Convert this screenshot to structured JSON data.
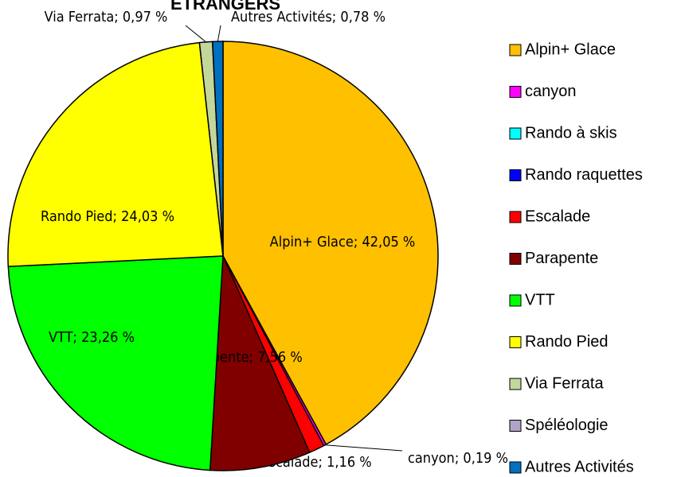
{
  "chart_data": {
    "type": "pie",
    "title": "ETRANGERS",
    "categories": [
      "Alpin+ Glace",
      "canyon",
      "Rando à skis",
      "Rando raquettes",
      "Escalade",
      "Parapente",
      "VTT",
      "Rando Pied",
      "Via Ferrata",
      "Spéléologie",
      "Autres Activités"
    ],
    "values": [
      42.05,
      0.19,
      0,
      0,
      1.16,
      7.56,
      23.26,
      24.03,
      0.97,
      0,
      0.78
    ],
    "value_labels": [
      "Alpin+ Glace; 42,05 %",
      "canyon; 0,19 %",
      null,
      null,
      "Escalade; 1,16 %",
      "Parapente; 7,56 %",
      "VTT; 23,26 %",
      "Rando Pied; 24,03 %",
      "Via Ferrata; 0,97 %",
      null,
      "Autres Activités; 0,78 %"
    ],
    "colors": [
      "#ffc000",
      "#ff00ff",
      "#00ffff",
      "#0000ff",
      "#ff0000",
      "#800000",
      "#00ff00",
      "#ffff00",
      "#c4d79b",
      "#b3a2c7",
      "#0070c0"
    ],
    "legend": "right"
  }
}
